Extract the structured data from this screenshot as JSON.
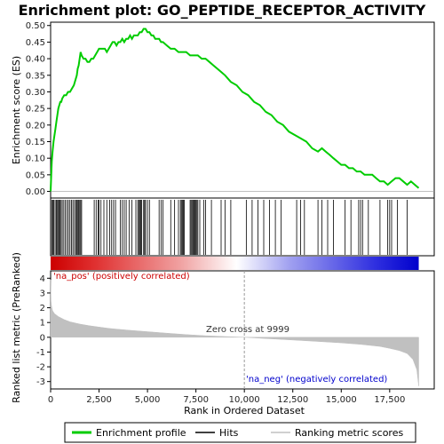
{
  "chart_data": {
    "type": "line",
    "title": "Enrichment plot: GO_PEPTIDE_RECEPTOR_ACTIVITY",
    "top_panel": {
      "ylabel": "Enrichment score (ES)",
      "ylim": [
        -0.02,
        0.51
      ],
      "yticks": [
        0.0,
        0.05,
        0.1,
        0.15,
        0.2,
        0.25,
        0.3,
        0.35,
        0.4,
        0.45,
        0.5
      ],
      "ytick_labels": [
        "0.00",
        "0.05",
        "0.10",
        "0.15",
        "0.20",
        "0.25",
        "0.30",
        "0.35",
        "0.40",
        "0.45",
        "0.50"
      ],
      "series": [
        {
          "name": "Enrichment profile",
          "color": "#00cc00",
          "x": [
            0,
            30,
            60,
            100,
            150,
            200,
            250,
            300,
            350,
            400,
            450,
            500,
            550,
            600,
            700,
            800,
            900,
            1000,
            1100,
            1200,
            1300,
            1350,
            1400,
            1450,
            1500,
            1550,
            1600,
            1700,
            1800,
            1900,
            2000,
            2100,
            2200,
            2300,
            2400,
            2500,
            2600,
            2700,
            2800,
            2900,
            3000,
            3100,
            3200,
            3300,
            3400,
            3500,
            3600,
            3700,
            3800,
            3900,
            4000,
            4100,
            4200,
            4300,
            4400,
            4500,
            4600,
            4700,
            4800,
            4900,
            5000,
            5100,
            5200,
            5300,
            5400,
            5500,
            5600,
            5700,
            5800,
            6000,
            6200,
            6400,
            6600,
            6800,
            7000,
            7200,
            7400,
            7600,
            7800,
            8000,
            8200,
            8400,
            8600,
            8800,
            9000,
            9300,
            9600,
            9900,
            10200,
            10500,
            10800,
            11100,
            11400,
            11700,
            12000,
            12300,
            12600,
            12900,
            13200,
            13500,
            13800,
            14000,
            14200,
            14400,
            14600,
            14800,
            15000,
            15200,
            15400,
            15600,
            15800,
            16000,
            16200,
            16400,
            16600,
            16800,
            17000,
            17200,
            17400,
            17600,
            17800,
            18000,
            18200,
            18400,
            18600,
            18800,
            19000
          ],
          "y": [
            0.0,
            0.05,
            0.09,
            0.12,
            0.15,
            0.17,
            0.19,
            0.21,
            0.23,
            0.25,
            0.26,
            0.27,
            0.27,
            0.28,
            0.29,
            0.29,
            0.3,
            0.3,
            0.31,
            0.32,
            0.34,
            0.35,
            0.37,
            0.38,
            0.4,
            0.42,
            0.41,
            0.4,
            0.4,
            0.39,
            0.39,
            0.4,
            0.4,
            0.41,
            0.42,
            0.43,
            0.43,
            0.43,
            0.43,
            0.42,
            0.43,
            0.44,
            0.45,
            0.45,
            0.44,
            0.45,
            0.45,
            0.46,
            0.45,
            0.46,
            0.46,
            0.47,
            0.46,
            0.47,
            0.47,
            0.47,
            0.48,
            0.48,
            0.49,
            0.49,
            0.48,
            0.48,
            0.47,
            0.47,
            0.46,
            0.46,
            0.46,
            0.45,
            0.45,
            0.44,
            0.43,
            0.43,
            0.42,
            0.42,
            0.42,
            0.41,
            0.41,
            0.41,
            0.4,
            0.4,
            0.39,
            0.38,
            0.37,
            0.36,
            0.35,
            0.33,
            0.32,
            0.3,
            0.29,
            0.27,
            0.26,
            0.24,
            0.23,
            0.21,
            0.2,
            0.18,
            0.17,
            0.16,
            0.15,
            0.13,
            0.12,
            0.13,
            0.12,
            0.11,
            0.1,
            0.09,
            0.08,
            0.08,
            0.07,
            0.07,
            0.06,
            0.06,
            0.05,
            0.05,
            0.05,
            0.04,
            0.03,
            0.03,
            0.02,
            0.03,
            0.04,
            0.04,
            0.03,
            0.02,
            0.03,
            0.02,
            0.01
          ]
        }
      ]
    },
    "hits": [
      0,
      60,
      110,
      160,
      230,
      290,
      330,
      380,
      430,
      480,
      540,
      600,
      680,
      760,
      840,
      920,
      1000,
      1080,
      1150,
      1230,
      1300,
      1340,
      1390,
      1440,
      1500,
      1550,
      1600,
      2250,
      2350,
      2450,
      2500,
      2600,
      2750,
      2900,
      3050,
      3150,
      3250,
      3350,
      3600,
      3700,
      3800,
      3900,
      4050,
      4200,
      4400,
      4500,
      4550,
      4600,
      4650,
      4700,
      4800,
      4850,
      4900,
      5000,
      5100,
      5600,
      5700,
      5800,
      6200,
      6400,
      6600,
      6700,
      6750,
      6800,
      6850,
      6900,
      7200,
      7250,
      7300,
      7350,
      7400,
      7450,
      7500,
      7550,
      7600,
      7700,
      7900,
      8000,
      8300,
      8800,
      9000,
      9300,
      10100,
      10400,
      10700,
      11000,
      11300,
      11600,
      11900,
      12700,
      12900,
      13100,
      13800,
      14000,
      14300,
      14600,
      15200,
      15500,
      15900,
      16000,
      16100,
      16400,
      17000,
      17400,
      17500,
      17600,
      17900,
      18400
    ],
    "bottom_panel": {
      "ylabel": "Ranked list metric (PreRanked)",
      "ylim": [
        -3.5,
        4.5
      ],
      "yticks": [
        -3,
        -2,
        -1,
        0,
        1,
        2,
        3,
        4
      ],
      "ytick_labels": [
        "-3",
        "-2",
        "-1",
        "0",
        "1",
        "2",
        "3",
        "4"
      ],
      "series": [
        {
          "name": "Ranking metric scores",
          "color": "#c0c0c0",
          "x": [
            0,
            20,
            50,
            100,
            200,
            400,
            700,
            1000,
            1500,
            2000,
            3000,
            4000,
            5000,
            6000,
            7000,
            8000,
            9000,
            9999,
            11000,
            12000,
            13000,
            14000,
            15000,
            16000,
            17000,
            17500,
            18000,
            18400,
            18700,
            18900,
            19000
          ],
          "y": [
            3.9,
            2.5,
            2.1,
            1.8,
            1.6,
            1.4,
            1.2,
            1.05,
            0.9,
            0.78,
            0.6,
            0.48,
            0.38,
            0.28,
            0.18,
            0.1,
            0.05,
            0.0,
            -0.08,
            -0.15,
            -0.22,
            -0.3,
            -0.38,
            -0.48,
            -0.62,
            -0.75,
            -0.9,
            -1.1,
            -1.5,
            -2.2,
            -3.3
          ]
        }
      ]
    },
    "xlabel": "Rank in Ordered Dataset",
    "xlim": [
      0,
      19800
    ],
    "xticks": [
      0,
      2500,
      5000,
      7500,
      10000,
      12500,
      15000,
      17500
    ],
    "xtick_labels": [
      "0",
      "2,500",
      "5,000",
      "7,500",
      "10,000",
      "12,500",
      "15,000",
      "17,500"
    ],
    "zero_cross": 9999,
    "annotations": {
      "zero_cross": "Zero cross at 9999",
      "na_pos": "'na_pos' (positively correlated)",
      "na_neg": "'na_neg' (negatively correlated)"
    },
    "legend": {
      "placement": "bottom",
      "items": [
        {
          "label": "Enrichment profile",
          "color": "#00cc00"
        },
        {
          "label": "Hits",
          "color": "#000000"
        },
        {
          "label": "Ranking metric scores",
          "color": "#c0c0c0"
        }
      ]
    },
    "colors": {
      "pos": "#cc0000",
      "neg": "#0000cc",
      "na_pos_text": "#cc0000",
      "na_neg_text": "#0000cc"
    }
  }
}
